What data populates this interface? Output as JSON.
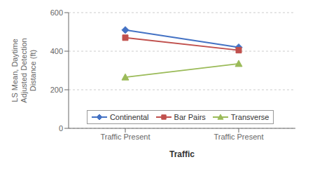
{
  "chart_data": {
    "type": "line",
    "categories": [
      "Traffic Present",
      "Traffic Present"
    ],
    "series": [
      {
        "name": "Continental",
        "color": "#4472C4",
        "marker": "diamond",
        "values": [
          510,
          420
        ]
      },
      {
        "name": "Bar Pairs",
        "color": "#C0504D",
        "marker": "square",
        "values": [
          470,
          405
        ]
      },
      {
        "name": "Transverse",
        "color": "#9BBB59",
        "marker": "triangle",
        "values": [
          265,
          335
        ]
      }
    ],
    "xlabel": "Traffic",
    "ylabel": "LS Mean, Daytime\nAdjusted Detection\nDistance (ft)",
    "ylim": [
      0,
      600
    ],
    "yticks": [
      0,
      200,
      400,
      600
    ],
    "grid": true,
    "legend": "lower left"
  }
}
